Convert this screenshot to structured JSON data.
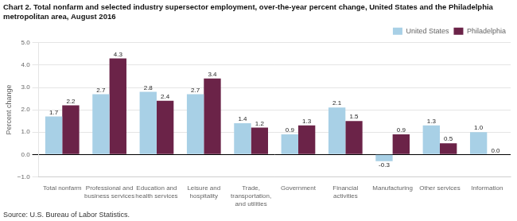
{
  "chart_data": {
    "type": "bar",
    "title": [
      "Chart 2. Total nonfarm and selected industry supersector employment, over-the-year percent change, United States and the Philadelphia",
      "metropolitan area, August 2016"
    ],
    "ylabel": "Percent change",
    "source": "Source: U.S. Bureau of Labor Statistics.",
    "categories": [
      "Total nonfarm",
      "Professional and\nbusiness services",
      "Education and\nhealth services",
      "Leisure and\nhospitality",
      "Trade,\ntransportation,\nand utilities",
      "Government",
      "Financial\nactivities",
      "Manufacturing",
      "Other services",
      "Information"
    ],
    "series": [
      {
        "name": "United States",
        "color": "#a8d0e6",
        "values": [
          1.7,
          2.7,
          2.8,
          2.7,
          1.4,
          0.9,
          2.1,
          -0.3,
          1.3,
          1.0
        ],
        "value_labels": [
          "1.7",
          "2.7",
          "2.8",
          "2.7",
          "1.4",
          "0.9",
          "2.1",
          "-0.3",
          "1.3",
          "1.0"
        ]
      },
      {
        "name": "Philadelphia",
        "color": "#6b2348",
        "values": [
          2.2,
          4.3,
          2.4,
          3.4,
          1.2,
          1.3,
          1.5,
          0.9,
          0.5,
          0.0
        ],
        "value_labels": [
          "2.2",
          "4.3",
          "2.4",
          "3.4",
          "1.2",
          "1.3",
          "1.5",
          "0.9",
          "0.5",
          "0.0"
        ]
      }
    ],
    "ylim": [
      -1.0,
      5.0
    ],
    "yticks": [
      {
        "value": -1.0,
        "label": "−1.0"
      },
      {
        "value": 0.0,
        "label": "0.0"
      },
      {
        "value": 1.0,
        "label": "1.0"
      },
      {
        "value": 2.0,
        "label": "2.0"
      },
      {
        "value": 3.0,
        "label": "3.0"
      },
      {
        "value": 4.0,
        "label": "4.0"
      },
      {
        "value": 5.0,
        "label": "5.0"
      }
    ],
    "grid": true,
    "legend": "upper right",
    "data_labels": true
  }
}
